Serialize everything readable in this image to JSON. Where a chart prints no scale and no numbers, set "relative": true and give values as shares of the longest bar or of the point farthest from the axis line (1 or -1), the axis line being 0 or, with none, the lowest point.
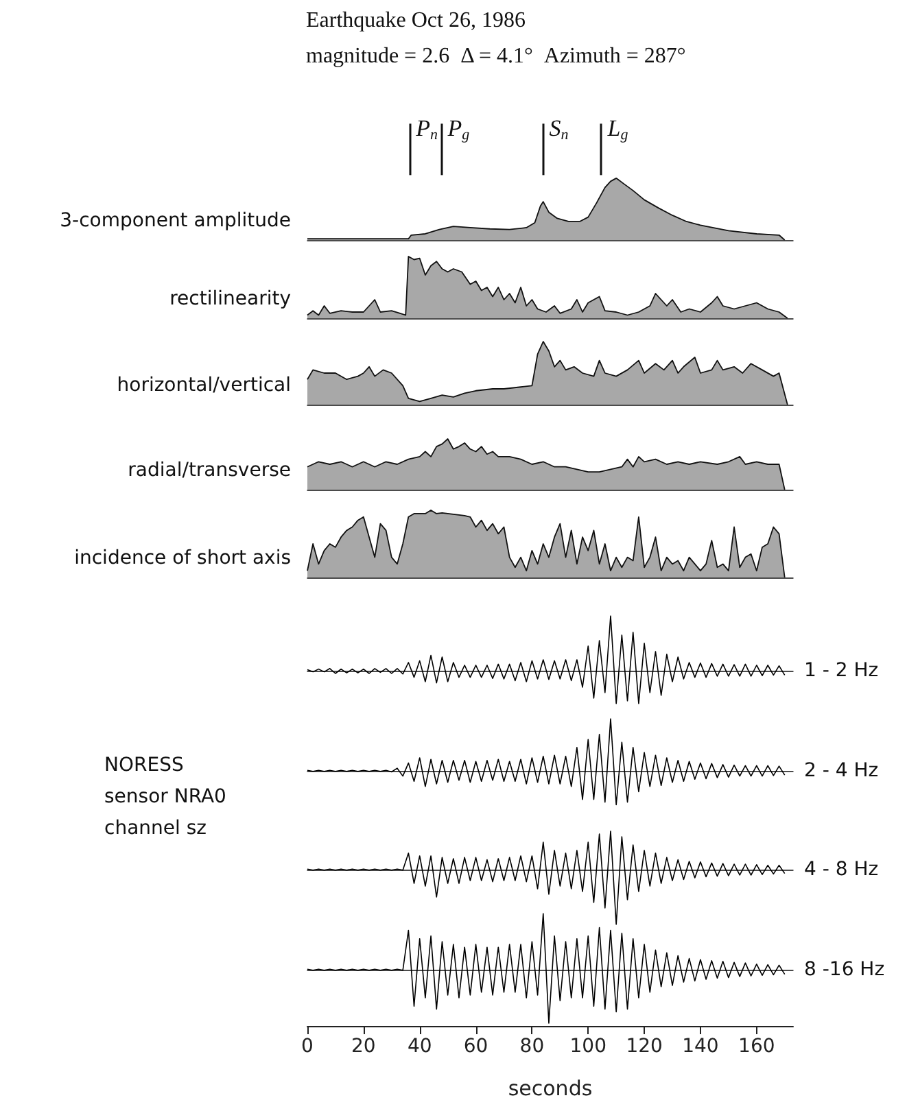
{
  "chart_data": [
    {
      "type": "area",
      "title": "Earthquake Oct 26, 1986",
      "subtitle": "magnitude = 2.6  Δ = 4.1°  Azimuth = 287°",
      "ylabel": "3-component amplitude",
      "relative": true,
      "xlim": [
        0,
        173
      ],
      "tick_labels": false,
      "color": "#a8a8a8",
      "ref_lines": [
        {
          "axis": "x",
          "value": 36.7,
          "label": "P$_{n}$"
        },
        {
          "axis": "x",
          "value": 48,
          "label": "P$_{g}$"
        },
        {
          "axis": "x",
          "value": 83.7,
          "label": "S$_{n}$"
        },
        {
          "axis": "x",
          "value": 104.7,
          "label": "L$_{g}$"
        }
      ],
      "x": [
        0,
        36,
        37,
        42,
        47,
        52,
        58,
        65,
        72,
        78,
        81,
        83,
        84,
        86,
        89,
        93,
        97,
        100,
        103,
        106,
        108,
        110,
        113,
        116,
        120,
        125,
        130,
        135,
        140,
        150,
        160,
        168,
        170
      ],
      "values": [
        0.02,
        0.02,
        0.08,
        0.1,
        0.17,
        0.22,
        0.2,
        0.18,
        0.17,
        0.2,
        0.28,
        0.55,
        0.62,
        0.45,
        0.35,
        0.3,
        0.3,
        0.37,
        0.6,
        0.85,
        0.95,
        1,
        0.9,
        0.8,
        0.65,
        0.52,
        0.4,
        0.3,
        0.24,
        0.15,
        0.1,
        0.08,
        0
      ]
    },
    {
      "type": "area",
      "ylabel": "rectilinearity",
      "relative": true,
      "xlim": [
        0,
        173
      ],
      "tick_labels": false,
      "color": "#a8a8a8",
      "x": [
        0,
        2,
        4,
        6,
        8,
        12,
        16,
        20,
        22,
        24,
        26,
        30,
        33,
        35,
        36,
        38,
        40,
        42,
        44,
        46,
        48,
        50,
        52,
        55,
        58,
        60,
        62,
        64,
        66,
        68,
        70,
        72,
        74,
        76,
        78,
        80,
        82,
        85,
        88,
        90,
        94,
        96,
        98,
        100,
        102,
        104,
        106,
        110,
        114,
        118,
        122,
        124,
        126,
        128,
        130,
        133,
        136,
        140,
        144,
        146,
        148,
        152,
        156,
        160,
        164,
        168,
        171
      ],
      "values": [
        0.05,
        0.12,
        0.05,
        0.2,
        0.08,
        0.12,
        0.1,
        0.1,
        0.2,
        0.3,
        0.1,
        0.12,
        0.08,
        0.05,
        1,
        0.95,
        0.97,
        0.7,
        0.85,
        0.92,
        0.8,
        0.75,
        0.8,
        0.75,
        0.55,
        0.6,
        0.45,
        0.5,
        0.35,
        0.5,
        0.3,
        0.4,
        0.25,
        0.5,
        0.2,
        0.3,
        0.15,
        0.1,
        0.2,
        0.08,
        0.15,
        0.3,
        0.1,
        0.25,
        0.3,
        0.35,
        0.12,
        0.1,
        0.05,
        0.1,
        0.2,
        0.4,
        0.3,
        0.2,
        0.3,
        0.1,
        0.15,
        0.1,
        0.25,
        0.35,
        0.2,
        0.15,
        0.2,
        0.25,
        0.15,
        0.1,
        0
      ]
    },
    {
      "type": "area",
      "ylabel": "horizontal/vertical",
      "relative": true,
      "xlim": [
        0,
        173
      ],
      "tick_labels": false,
      "color": "#a8a8a8",
      "x": [
        0,
        2,
        6,
        10,
        14,
        18,
        20,
        22,
        24,
        27,
        30,
        34,
        36,
        40,
        44,
        48,
        52,
        56,
        60,
        66,
        70,
        76,
        80,
        82,
        84,
        86,
        88,
        90,
        92,
        95,
        98,
        102,
        104,
        106,
        110,
        114,
        118,
        120,
        124,
        127,
        130,
        132,
        134,
        138,
        140,
        144,
        146,
        148,
        152,
        155,
        158,
        162,
        166,
        168,
        171
      ],
      "values": [
        0.4,
        0.55,
        0.5,
        0.5,
        0.4,
        0.45,
        0.5,
        0.6,
        0.45,
        0.55,
        0.5,
        0.3,
        0.1,
        0.05,
        0.1,
        0.15,
        0.12,
        0.18,
        0.22,
        0.25,
        0.25,
        0.28,
        0.3,
        0.8,
        1,
        0.85,
        0.6,
        0.7,
        0.55,
        0.6,
        0.5,
        0.45,
        0.7,
        0.5,
        0.45,
        0.55,
        0.7,
        0.5,
        0.65,
        0.55,
        0.7,
        0.5,
        0.6,
        0.75,
        0.5,
        0.55,
        0.7,
        0.55,
        0.6,
        0.5,
        0.65,
        0.55,
        0.45,
        0.5,
        0
      ]
    },
    {
      "type": "area",
      "ylabel": "radial/transverse",
      "relative": true,
      "xlim": [
        0,
        173
      ],
      "tick_labels": false,
      "color": "#a8a8a8",
      "x": [
        0,
        2,
        4,
        8,
        12,
        16,
        20,
        24,
        28,
        32,
        36,
        40,
        42,
        44,
        46,
        48,
        50,
        52,
        54,
        56,
        58,
        60,
        62,
        64,
        66,
        68,
        72,
        76,
        80,
        84,
        88,
        92,
        96,
        100,
        104,
        108,
        112,
        114,
        116,
        118,
        120,
        124,
        128,
        132,
        136,
        140,
        146,
        150,
        154,
        156,
        160,
        164,
        168,
        170
      ],
      "values": [
        0.45,
        0.5,
        0.55,
        0.5,
        0.55,
        0.45,
        0.55,
        0.45,
        0.55,
        0.5,
        0.6,
        0.65,
        0.75,
        0.65,
        0.85,
        0.9,
        1,
        0.8,
        0.85,
        0.92,
        0.8,
        0.75,
        0.85,
        0.7,
        0.75,
        0.65,
        0.65,
        0.6,
        0.5,
        0.55,
        0.45,
        0.45,
        0.4,
        0.35,
        0.35,
        0.4,
        0.45,
        0.6,
        0.45,
        0.65,
        0.55,
        0.6,
        0.5,
        0.55,
        0.5,
        0.55,
        0.5,
        0.55,
        0.65,
        0.5,
        0.55,
        0.5,
        0.5,
        0
      ]
    },
    {
      "type": "area",
      "ylabel": "incidence of short axis",
      "relative": true,
      "xlim": [
        0,
        173
      ],
      "tick_labels": false,
      "color": "#a8a8a8",
      "x": [
        0,
        2,
        4,
        6,
        8,
        10,
        12,
        14,
        16,
        18,
        20,
        22,
        24,
        26,
        28,
        30,
        32,
        34,
        36,
        38,
        40,
        42,
        44,
        46,
        48,
        50,
        52,
        54,
        56,
        58,
        60,
        62,
        64,
        66,
        68,
        70,
        72,
        74,
        76,
        78,
        80,
        82,
        84,
        86,
        88,
        90,
        92,
        94,
        96,
        98,
        100,
        102,
        104,
        106,
        108,
        110,
        112,
        114,
        116,
        118,
        120,
        122,
        124,
        126,
        128,
        130,
        132,
        134,
        136,
        138,
        140,
        142,
        144,
        146,
        148,
        150,
        152,
        154,
        156,
        158,
        160,
        162,
        164,
        166,
        168,
        170
      ],
      "values": [
        0.1,
        0.5,
        0.2,
        0.4,
        0.5,
        0.45,
        0.6,
        0.7,
        0.75,
        0.85,
        0.9,
        0.6,
        0.3,
        0.8,
        0.7,
        0.3,
        0.2,
        0.5,
        0.9,
        0.95,
        0.95,
        0.95,
        1,
        0.95,
        0.96,
        0.95,
        0.94,
        0.93,
        0.92,
        0.9,
        0.75,
        0.85,
        0.7,
        0.8,
        0.65,
        0.75,
        0.3,
        0.15,
        0.3,
        0.1,
        0.4,
        0.2,
        0.5,
        0.3,
        0.6,
        0.8,
        0.3,
        0.7,
        0.2,
        0.6,
        0.4,
        0.7,
        0.2,
        0.5,
        0.1,
        0.3,
        0.15,
        0.3,
        0.25,
        0.9,
        0.15,
        0.3,
        0.6,
        0.1,
        0.3,
        0.2,
        0.25,
        0.1,
        0.3,
        0.2,
        0.1,
        0.2,
        0.55,
        0.15,
        0.2,
        0.1,
        0.75,
        0.15,
        0.3,
        0.35,
        0.1,
        0.45,
        0.5,
        0.75,
        0.65,
        0
      ]
    },
    {
      "type": "line",
      "relative": true,
      "xlim": [
        0,
        173
      ],
      "tick_labels": false,
      "color": "#000000",
      "annotations": [
        "1 - 2 Hz"
      ],
      "x": [
        0,
        2,
        4,
        6,
        8,
        10,
        12,
        14,
        16,
        18,
        20,
        22,
        24,
        26,
        28,
        30,
        32,
        34,
        36,
        38,
        40,
        42,
        44,
        46,
        48,
        50,
        52,
        54,
        56,
        58,
        60,
        62,
        64,
        66,
        68,
        70,
        72,
        74,
        76,
        78,
        80,
        82,
        84,
        86,
        88,
        90,
        92,
        94,
        96,
        98,
        100,
        102,
        104,
        106,
        108,
        110,
        112,
        114,
        116,
        118,
        120,
        122,
        124,
        126,
        128,
        130,
        132,
        134,
        136,
        138,
        140,
        142,
        144,
        146,
        148,
        150,
        152,
        154,
        156,
        158,
        160,
        162,
        164,
        166,
        168,
        170
      ],
      "values": [
        0.02,
        -0.02,
        0.03,
        -0.02,
        0.04,
        -0.05,
        0.03,
        -0.04,
        0.03,
        -0.04,
        0.03,
        -0.05,
        0.04,
        -0.03,
        0.04,
        -0.05,
        0.04,
        -0.06,
        0.15,
        -0.12,
        0.18,
        -0.2,
        0.28,
        -0.22,
        0.25,
        -0.2,
        0.15,
        -0.12,
        0.1,
        -0.12,
        0.1,
        -0.12,
        0.1,
        -0.14,
        0.12,
        -0.15,
        0.12,
        -0.18,
        0.15,
        -0.2,
        0.18,
        -0.15,
        0.2,
        -0.16,
        0.18,
        -0.15,
        0.2,
        -0.18,
        0.2,
        -0.3,
        0.45,
        -0.5,
        0.55,
        -0.4,
        1,
        -0.6,
        0.65,
        -0.55,
        0.7,
        -0.6,
        0.5,
        -0.4,
        0.35,
        -0.45,
        0.3,
        -0.2,
        0.25,
        -0.15,
        0.15,
        -0.12,
        0.14,
        -0.12,
        0.13,
        -0.1,
        0.12,
        -0.1,
        0.11,
        -0.1,
        0.12,
        -0.1,
        0.1,
        -0.09,
        0.1,
        -0.08,
        0.09,
        -0.08
      ]
    },
    {
      "type": "other",
      "annotations": [
        "NORESS",
        "sensor NRA0",
        "channel sz"
      ]
    },
    {
      "type": "line",
      "relative": true,
      "xlim": [
        0,
        173
      ],
      "tick_labels": false,
      "color": "#000000",
      "annotations": [
        "2 - 4 Hz"
      ],
      "x": [
        0,
        2,
        4,
        6,
        8,
        10,
        12,
        14,
        16,
        18,
        20,
        22,
        24,
        26,
        28,
        30,
        32,
        34,
        36,
        38,
        40,
        42,
        44,
        46,
        48,
        50,
        52,
        54,
        56,
        58,
        60,
        62,
        64,
        66,
        68,
        70,
        72,
        74,
        76,
        78,
        80,
        82,
        84,
        86,
        88,
        90,
        92,
        94,
        96,
        98,
        100,
        102,
        104,
        106,
        108,
        110,
        112,
        114,
        116,
        118,
        120,
        122,
        124,
        126,
        128,
        130,
        132,
        134,
        136,
        138,
        140,
        142,
        144,
        146,
        148,
        150,
        152,
        154,
        156,
        158,
        160,
        162,
        164,
        166,
        168,
        170
      ],
      "values": [
        0.01,
        -0.01,
        0.01,
        -0.01,
        0.01,
        -0.01,
        0.01,
        -0.01,
        0.01,
        -0.01,
        0.01,
        -0.01,
        0.01,
        -0.01,
        0.01,
        -0.02,
        0.05,
        -0.1,
        0.15,
        -0.2,
        0.25,
        -0.3,
        0.22,
        -0.25,
        0.2,
        -0.22,
        0.2,
        -0.18,
        0.2,
        -0.22,
        0.18,
        -0.2,
        0.2,
        -0.18,
        0.22,
        -0.2,
        0.18,
        -0.2,
        0.22,
        -0.25,
        0.25,
        -0.22,
        0.28,
        -0.25,
        0.3,
        -0.25,
        0.28,
        -0.3,
        0.45,
        -0.55,
        0.6,
        -0.55,
        0.7,
        -0.6,
        1,
        -0.65,
        0.55,
        -0.6,
        0.45,
        -0.4,
        0.35,
        -0.3,
        0.3,
        -0.28,
        0.25,
        -0.22,
        0.2,
        -0.2,
        0.18,
        -0.16,
        0.15,
        -0.15,
        0.14,
        -0.13,
        0.12,
        -0.12,
        0.11,
        -0.1,
        0.1,
        -0.1,
        0.1,
        -0.1,
        0.1,
        -0.09,
        0.09,
        -0.08
      ]
    },
    {
      "type": "line",
      "relative": true,
      "xlim": [
        0,
        173
      ],
      "tick_labels": false,
      "color": "#000000",
      "annotations": [
        "4 - 8 Hz"
      ],
      "x": [
        0,
        2,
        4,
        6,
        8,
        10,
        12,
        14,
        16,
        18,
        20,
        22,
        24,
        26,
        28,
        30,
        32,
        34,
        36,
        38,
        40,
        42,
        44,
        46,
        48,
        50,
        52,
        54,
        56,
        58,
        60,
        62,
        64,
        66,
        68,
        70,
        72,
        74,
        76,
        78,
        80,
        82,
        84,
        86,
        88,
        90,
        92,
        94,
        96,
        98,
        100,
        102,
        104,
        106,
        108,
        110,
        112,
        114,
        116,
        118,
        120,
        122,
        124,
        126,
        128,
        130,
        132,
        134,
        136,
        138,
        140,
        142,
        144,
        146,
        148,
        150,
        152,
        154,
        156,
        158,
        160,
        162,
        164,
        166,
        168,
        170
      ],
      "values": [
        0.01,
        -0.01,
        0.01,
        -0.01,
        0.01,
        -0.01,
        0.01,
        -0.01,
        0.01,
        -0.01,
        0.01,
        -0.01,
        0.01,
        -0.01,
        0.01,
        -0.01,
        0.01,
        -0.01,
        0.3,
        -0.25,
        0.25,
        -0.3,
        0.25,
        -0.5,
        0.22,
        -0.25,
        0.2,
        -0.25,
        0.22,
        -0.2,
        0.22,
        -0.2,
        0.18,
        -0.22,
        0.2,
        -0.2,
        0.22,
        -0.2,
        0.25,
        -0.22,
        0.25,
        -0.35,
        0.5,
        -0.45,
        0.35,
        -0.3,
        0.3,
        -0.35,
        0.35,
        -0.4,
        0.5,
        -0.6,
        0.65,
        -0.7,
        0.7,
        -1,
        0.6,
        -0.55,
        0.45,
        -0.4,
        0.35,
        -0.3,
        0.3,
        -0.25,
        0.22,
        -0.2,
        0.18,
        -0.18,
        0.15,
        -0.15,
        0.14,
        -0.13,
        0.12,
        -0.12,
        0.11,
        -0.11,
        0.1,
        -0.1,
        0.1,
        -0.1,
        0.09,
        -0.09,
        0.08,
        -0.08,
        0.08,
        -0.07
      ]
    },
    {
      "type": "line",
      "relative": true,
      "xlim": [
        0,
        173
      ],
      "xticks": [
        0,
        20,
        40,
        60,
        80,
        100,
        120,
        140,
        160
      ],
      "xlabel": "seconds",
      "tick_labels": "x",
      "color": "#000000",
      "annotations": [
        "8 -16 Hz"
      ],
      "x": [
        0,
        2,
        4,
        6,
        8,
        10,
        12,
        14,
        16,
        18,
        20,
        22,
        24,
        26,
        28,
        30,
        32,
        34,
        36,
        38,
        40,
        42,
        44,
        46,
        48,
        50,
        52,
        54,
        56,
        58,
        60,
        62,
        64,
        66,
        68,
        70,
        72,
        74,
        76,
        78,
        80,
        82,
        84,
        86,
        88,
        90,
        92,
        94,
        96,
        98,
        100,
        102,
        104,
        106,
        108,
        110,
        112,
        114,
        116,
        118,
        120,
        122,
        124,
        126,
        128,
        130,
        132,
        134,
        136,
        138,
        140,
        142,
        144,
        146,
        148,
        150,
        152,
        154,
        156,
        158,
        160,
        162,
        164,
        166,
        168,
        170
      ],
      "values": [
        0.01,
        -0.01,
        0.01,
        -0.01,
        0.01,
        -0.01,
        0.01,
        -0.01,
        0.01,
        -0.01,
        0.01,
        -0.01,
        0.01,
        -0.01,
        0.01,
        -0.01,
        0.01,
        -0.01,
        0.7,
        -0.65,
        0.55,
        -0.5,
        0.6,
        -0.7,
        0.5,
        -0.45,
        0.45,
        -0.5,
        0.4,
        -0.45,
        0.45,
        -0.4,
        0.4,
        -0.45,
        0.4,
        -0.4,
        0.45,
        -0.4,
        0.45,
        -0.5,
        0.5,
        -0.45,
        1,
        -0.95,
        0.6,
        -0.55,
        0.5,
        -0.5,
        0.55,
        -0.5,
        0.6,
        -0.65,
        0.75,
        -0.7,
        0.7,
        -0.75,
        0.65,
        -0.7,
        0.55,
        -0.5,
        0.45,
        -0.4,
        0.35,
        -0.3,
        0.3,
        -0.28,
        0.25,
        -0.22,
        0.2,
        -0.2,
        0.18,
        -0.17,
        0.16,
        -0.15,
        0.15,
        -0.14,
        0.13,
        -0.12,
        0.12,
        -0.11,
        0.1,
        -0.1,
        0.09,
        -0.09,
        0.08,
        -0.08
      ]
    }
  ]
}
